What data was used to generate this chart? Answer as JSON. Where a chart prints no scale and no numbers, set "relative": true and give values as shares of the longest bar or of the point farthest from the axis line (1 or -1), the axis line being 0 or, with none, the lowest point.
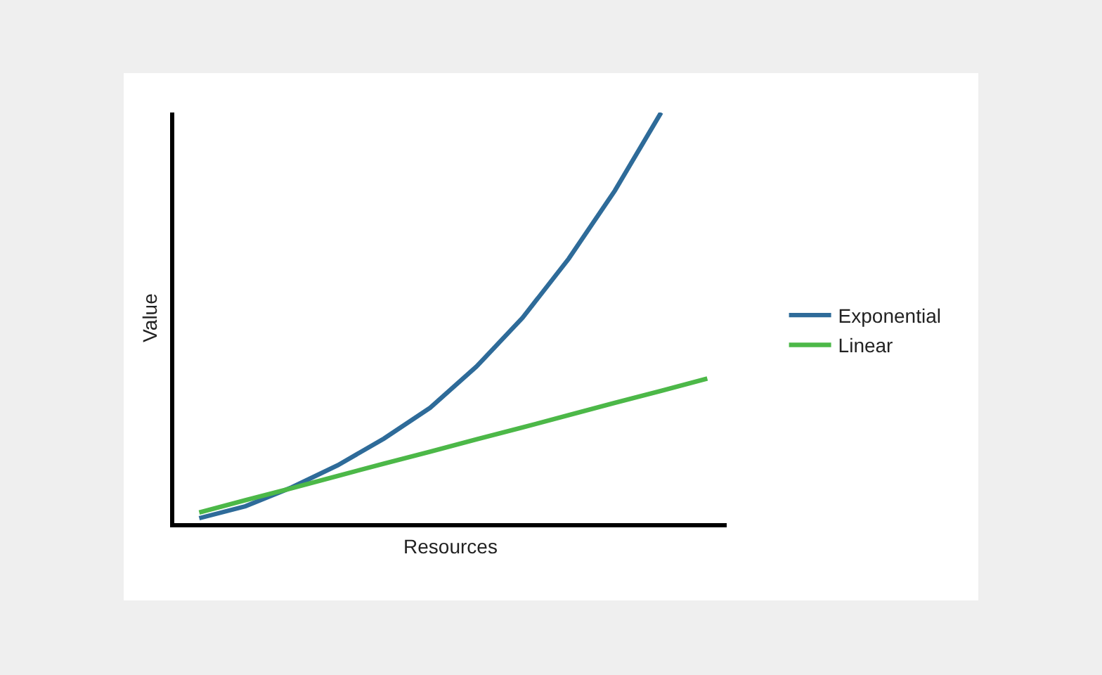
{
  "chart_data": {
    "type": "line",
    "relative": true,
    "xlabel": "Resources",
    "ylabel": "Value",
    "categories": [
      null,
      null,
      null,
      null,
      null,
      null,
      null,
      null,
      null,
      null,
      null,
      null
    ],
    "series": [
      {
        "name": "Exponential",
        "color": "#2e6b99",
        "values": [
          0.012,
          0.041,
          0.087,
          0.141,
          0.206,
          0.281,
          0.381,
          0.5,
          0.644,
          0.81,
          1,
          null
        ]
      },
      {
        "name": "Linear",
        "color": "#4cb848",
        "values": [
          0.026,
          0.056,
          0.085,
          0.115,
          0.145,
          0.174,
          0.204,
          0.233,
          0.263,
          0.293,
          0.322,
          0.352
        ]
      }
    ],
    "legend": "right",
    "marker": "none",
    "line_style": "solid"
  }
}
